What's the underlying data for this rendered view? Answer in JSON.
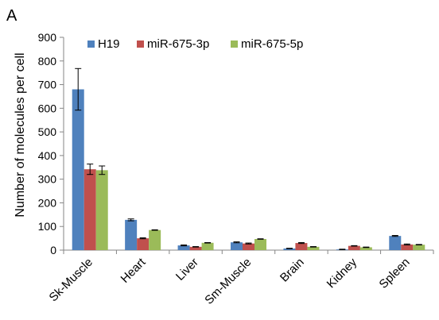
{
  "panel_label": "A",
  "chart_data": {
    "type": "bar",
    "title": "",
    "xlabel": "",
    "ylabel": "Number of molecules per cell",
    "ylim": [
      0,
      900
    ],
    "yticks": [
      0,
      100,
      200,
      300,
      400,
      500,
      600,
      700,
      800,
      900
    ],
    "grid": false,
    "legend_position": "top-left",
    "categories": [
      "Sk-Muscle",
      "Heart",
      "Liver",
      "Sm-Muscle",
      "Brain",
      "Kidney",
      "Spleen"
    ],
    "series": [
      {
        "name": "H19",
        "color": "#4f81bd",
        "values": [
          680,
          128,
          20,
          33,
          7,
          3,
          60
        ],
        "errors": [
          88,
          4,
          2,
          2,
          1,
          1,
          2
        ]
      },
      {
        "name": "miR-675-3p",
        "color": "#c0504d",
        "values": [
          342,
          50,
          14,
          28,
          30,
          18,
          24
        ],
        "errors": [
          22,
          2,
          1,
          2,
          2,
          1,
          2
        ]
      },
      {
        "name": "miR-675-5p",
        "color": "#9bbb59",
        "values": [
          338,
          85,
          31,
          47,
          14,
          12,
          23
        ],
        "errors": [
          18,
          1,
          1,
          1,
          1,
          1,
          1
        ]
      }
    ]
  }
}
